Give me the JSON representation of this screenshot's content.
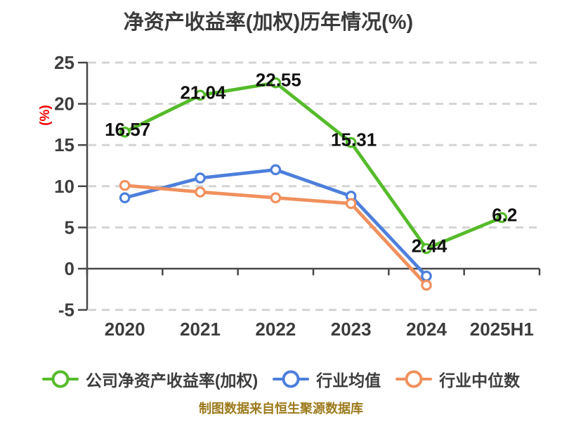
{
  "title": "净资产收益率(加权)历年情况(%)",
  "source_note": "制图数据来自恒生聚源数据库",
  "colors": {
    "title_text": "#3a3a3a",
    "axis_line": "#484848",
    "tick_label": "#3d3d3d",
    "grid_line": "#d4d4d4",
    "data_label": "#101010",
    "y_unit_label": "#f20000",
    "source_text": "#9c7a1c",
    "series_company": "#55bb2a",
    "series_industry_mean": "#4d7fdc",
    "series_industry_median": "#f0905d"
  },
  "chart_data": {
    "type": "line",
    "title": "净资产收益率(加权)历年情况(%)",
    "ylabel": "(%)",
    "xlabel": "",
    "categories": [
      "2020",
      "2021",
      "2022",
      "2023",
      "2024",
      "2025H1"
    ],
    "series": [
      {
        "name": "公司净资产收益率(加权)",
        "color": "#55bb2a",
        "values": [
          16.57,
          21.04,
          22.55,
          15.31,
          2.44,
          6.2
        ],
        "labels": [
          "16.57",
          "21.04",
          "22.55",
          "15.31",
          "2.44",
          "6.2"
        ]
      },
      {
        "name": "行业均值",
        "color": "#4d7fdc",
        "values": [
          8.6,
          11.0,
          12.0,
          8.8,
          -0.9,
          null
        ],
        "labels": null
      },
      {
        "name": "行业中位数",
        "color": "#f0905d",
        "values": [
          10.1,
          9.3,
          8.6,
          7.9,
          -2.0,
          null
        ],
        "labels": null
      }
    ],
    "ylim": [
      -5,
      25
    ],
    "yticks": [
      25,
      20,
      15,
      10,
      5,
      0,
      -5
    ],
    "grid": "dashed-horizontal",
    "legend_position": "bottom",
    "marker_style": "open-circle"
  }
}
